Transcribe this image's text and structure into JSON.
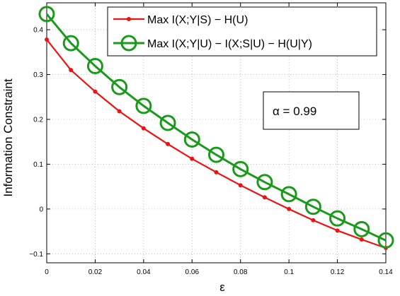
{
  "chart_data": {
    "type": "line",
    "xlabel": "ε",
    "ylabel": "Information Constraint",
    "xlim": [
      0,
      0.14
    ],
    "ylim": [
      -0.12,
      0.46
    ],
    "xticks": [
      0,
      0.02,
      0.04,
      0.06,
      0.08,
      0.1,
      0.12,
      0.14
    ],
    "xtick_labels": [
      "0",
      "0.02",
      "0.04",
      "0.06",
      "0.08",
      "0.1",
      "0.12",
      "0.14"
    ],
    "yticks": [
      -0.1,
      0,
      0.1,
      0.2,
      0.3,
      0.4
    ],
    "ytick_labels": [
      "−0.1",
      "0",
      "0.1",
      "0.2",
      "0.3",
      "0.4"
    ],
    "grid": true,
    "legend_position": "top-right",
    "annotation": "α = 0.99",
    "x": [
      0,
      0.01,
      0.02,
      0.03,
      0.04,
      0.05,
      0.06,
      0.07,
      0.08,
      0.09,
      0.1,
      0.11,
      0.12,
      0.13,
      0.14
    ],
    "series": [
      {
        "name": "Max I(X;Y|S) − H(U)",
        "color": "#ee1111",
        "marker": "dot",
        "values": [
          0.378,
          0.31,
          0.262,
          0.218,
          0.18,
          0.145,
          0.112,
          0.082,
          0.053,
          0.026,
          0.0,
          -0.025,
          -0.048,
          -0.068,
          -0.087
        ]
      },
      {
        "name": "Max I(X;Y|U) − I(X;S|U) − H(U|Y)",
        "color": "#1a9a1a",
        "marker": "circle",
        "values": [
          0.435,
          0.37,
          0.319,
          0.272,
          0.23,
          0.192,
          0.155,
          0.121,
          0.089,
          0.06,
          0.033,
          0.005,
          -0.021,
          -0.045,
          -0.07
        ]
      }
    ]
  }
}
